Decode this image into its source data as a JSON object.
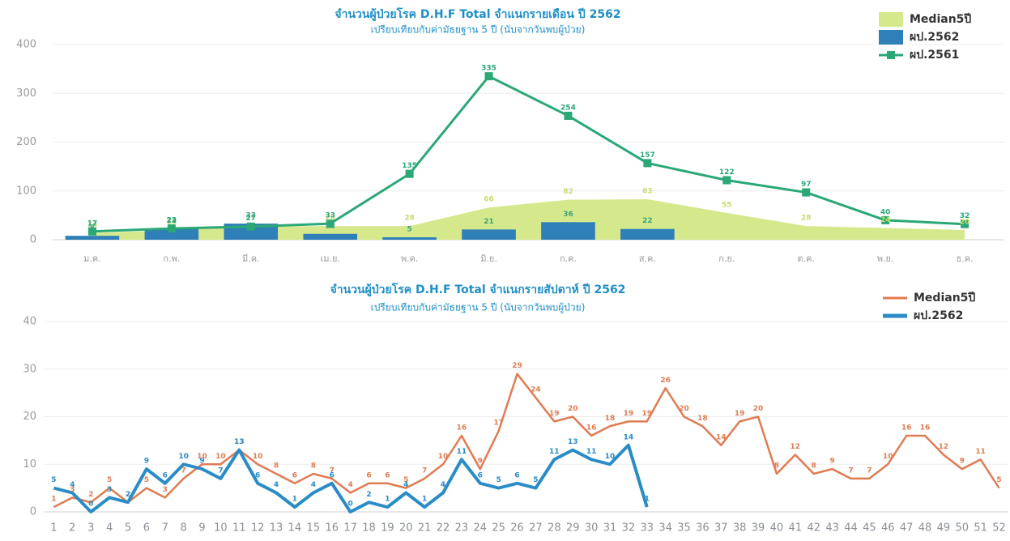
{
  "chart_data": [
    {
      "type": "combo",
      "title": "จำนวนผู้ป่วยโรค D.H.F Total จำแนกรายเดือน ปี 2562",
      "subtitle": "เปรียบเทียบกับค่ามัธยฐาน 5 ปี (นับจากวันพบผู้ป่วย)",
      "categories": [
        "ม.ค.",
        "ก.พ.",
        "มี.ค.",
        "เม.ย.",
        "พ.ค.",
        "มิ.ย.",
        "ก.ค.",
        "ส.ค.",
        "ก.ย.",
        "ต.ค.",
        "พ.ย.",
        "ธ.ค."
      ],
      "ylim": [
        0,
        400
      ],
      "yticks": [
        0,
        100,
        200,
        300,
        400
      ],
      "grid": true,
      "legend": "top-right",
      "series": [
        {
          "name": "Median5ปี",
          "type": "area",
          "color": "#d5e98c",
          "label_color": "#c8dc70",
          "values": [
            14,
            19,
            27,
            28,
            28,
            66,
            82,
            83,
            55,
            28,
            24,
            20
          ]
        },
        {
          "name": "ผป.2562",
          "type": "bar",
          "color": "#2f7fb9",
          "label_color": "#3aa37c",
          "values": [
            8,
            22,
            33,
            12,
            5,
            21,
            36,
            22,
            null,
            null,
            null,
            null
          ]
        },
        {
          "name": "ผป.2561",
          "type": "line",
          "color": "#2aa876",
          "label_color": "#2aa876",
          "values": [
            17,
            23,
            27,
            33,
            135,
            335,
            254,
            157,
            122,
            97,
            40,
            32
          ]
        }
      ]
    },
    {
      "type": "line",
      "title": "จำนวนผู้ป่วยโรค D.H.F Total จำแนกรายสัปดาห์ ปี 2562",
      "subtitle": "เปรียบเทียบกับค่ามัธยฐาน 5 ปี (นับจากวันพบผู้ป่วย)",
      "categories": [
        "1",
        "2",
        "3",
        "4",
        "5",
        "6",
        "7",
        "8",
        "9",
        "10",
        "11",
        "12",
        "13",
        "14",
        "15",
        "16",
        "17",
        "18",
        "19",
        "20",
        "21",
        "22",
        "23",
        "24",
        "25",
        "26",
        "27",
        "28",
        "29",
        "30",
        "31",
        "32",
        "33",
        "34",
        "35",
        "36",
        "37",
        "38",
        "39",
        "40",
        "41",
        "42",
        "43",
        "44",
        "45",
        "46",
        "47",
        "48",
        "49",
        "50",
        "51",
        "52"
      ],
      "ylim": [
        0,
        40
      ],
      "yticks": [
        0,
        10,
        20,
        30,
        40
      ],
      "grid": true,
      "legend": "top-right",
      "series": [
        {
          "name": "Median5ปี",
          "type": "line",
          "color": "#e07b52",
          "label_color": "#e07b52",
          "values": [
            1,
            3,
            2,
            5,
            2,
            5,
            3,
            7,
            10,
            10,
            13,
            10,
            8,
            6,
            8,
            7,
            4,
            6,
            6,
            5,
            7,
            10,
            16,
            9,
            17,
            29,
            24,
            19,
            20,
            16,
            18,
            19,
            19,
            26,
            20,
            18,
            14,
            19,
            20,
            8,
            12,
            8,
            9,
            7,
            7,
            10,
            16,
            16,
            12,
            9,
            11,
            5
          ]
        },
        {
          "name": "ผป.2562",
          "type": "line",
          "color": "#2a8cc6",
          "label_color": "#2a8cc6",
          "values": [
            5,
            4,
            0,
            3,
            2,
            9,
            6,
            10,
            9,
            7,
            13,
            6,
            4,
            1,
            4,
            6,
            0,
            2,
            1,
            4,
            1,
            4,
            11,
            6,
            5,
            6,
            5,
            11,
            13,
            11,
            10,
            14,
            1,
            null,
            null,
            null,
            null,
            null,
            null,
            null,
            null,
            null,
            null,
            null,
            null,
            null,
            null,
            null,
            null,
            null,
            null,
            null
          ]
        }
      ]
    }
  ]
}
